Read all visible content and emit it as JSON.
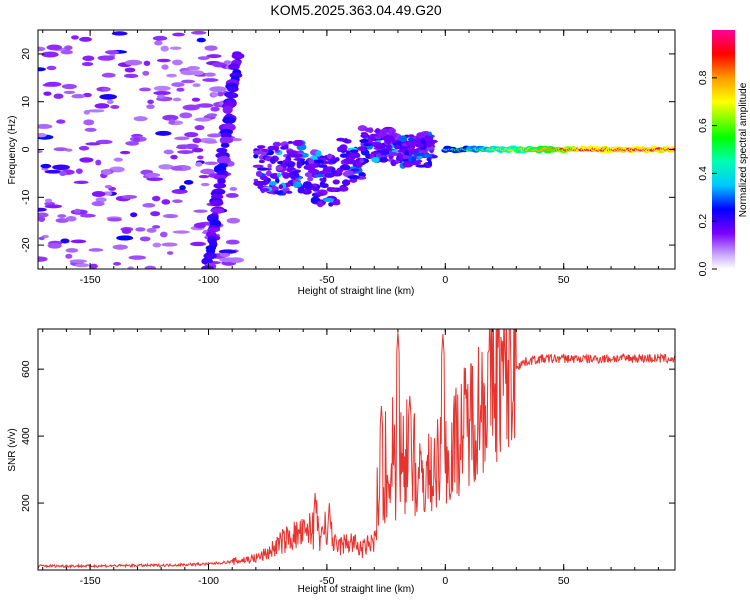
{
  "chart_data": [
    {
      "type": "heatmap",
      "title": "KOM5.2025.363.04.49.G20",
      "xlabel": "Height of straight line (km)",
      "ylabel": "Frequency (Hz)",
      "xlim": [
        -172,
        97
      ],
      "ylim": [
        -25,
        25
      ],
      "x_ticks": [
        -150,
        -100,
        -50,
        0,
        50
      ],
      "x_tick_labels": [
        "-150",
        "-100",
        "-50",
        "0",
        "50"
      ],
      "y_ticks": [
        -20,
        -10,
        0,
        10,
        20
      ],
      "y_tick_labels": [
        "-20",
        "-10",
        "0",
        "10",
        "20"
      ],
      "colorbar": {
        "label": "Normalized spectral amplitude",
        "range": [
          0.0,
          1.0
        ],
        "ticks": [
          0.0,
          0.2,
          0.4,
          0.6,
          0.8
        ],
        "tick_labels": [
          "0.0",
          "0.2",
          "0.4",
          "0.6",
          "0.8"
        ]
      },
      "features": [
        {
          "name": "noise-field",
          "x_range": [
            -172,
            -88
          ],
          "freq_range": [
            -25,
            25
          ],
          "amplitude": 0.1
        },
        {
          "name": "diagonal-streak",
          "x": [
            -88,
            -100
          ],
          "freq": [
            20,
            -25
          ],
          "amplitude": 0.2
        },
        {
          "name": "turbulent-cluster",
          "x_range": [
            -80,
            -5
          ],
          "freq_range": [
            -12,
            5
          ],
          "amplitude": 0.3
        },
        {
          "name": "carrier-line",
          "x_range": [
            0,
            97
          ],
          "freq": 0,
          "amplitude": [
            0.5,
            1.0
          ]
        }
      ]
    },
    {
      "type": "line",
      "xlabel": "Height of straight line (km)",
      "ylabel": "SNR (v/v)",
      "xlim": [
        -172,
        97
      ],
      "ylim": [
        0,
        720
      ],
      "x_ticks": [
        -150,
        -100,
        -50,
        0,
        50
      ],
      "x_tick_labels": [
        "-150",
        "-100",
        "-50",
        "0",
        "50"
      ],
      "y_ticks": [
        200,
        400,
        600
      ],
      "y_tick_labels": [
        "200",
        "400",
        "600"
      ],
      "series": [
        {
          "name": "SNR",
          "color": "#e8322d",
          "x": [
            -172,
            -150,
            -120,
            -100,
            -90,
            -80,
            -75,
            -70,
            -65,
            -60,
            -55,
            -50,
            -45,
            -40,
            -35,
            -30,
            -25,
            -20,
            -15,
            -10,
            -5,
            0,
            5,
            10,
            15,
            20,
            25,
            30,
            35,
            40,
            50,
            60,
            70,
            80,
            90,
            97
          ],
          "values": [
            12,
            12,
            14,
            18,
            25,
            35,
            50,
            80,
            100,
            110,
            90,
            95,
            70,
            85,
            60,
            90,
            230,
            250,
            260,
            270,
            300,
            340,
            390,
            450,
            500,
            560,
            590,
            610,
            625,
            630,
            632,
            630,
            632,
            633,
            632,
            630
          ]
        }
      ],
      "spikes": [
        {
          "x": -55,
          "value": 230
        },
        {
          "x": -49,
          "value": 200
        },
        {
          "x": -27,
          "value": 490
        },
        {
          "x": -20,
          "value": 710
        },
        {
          "x": -15,
          "value": 520
        },
        {
          "x": -1,
          "value": 705
        }
      ]
    }
  ]
}
